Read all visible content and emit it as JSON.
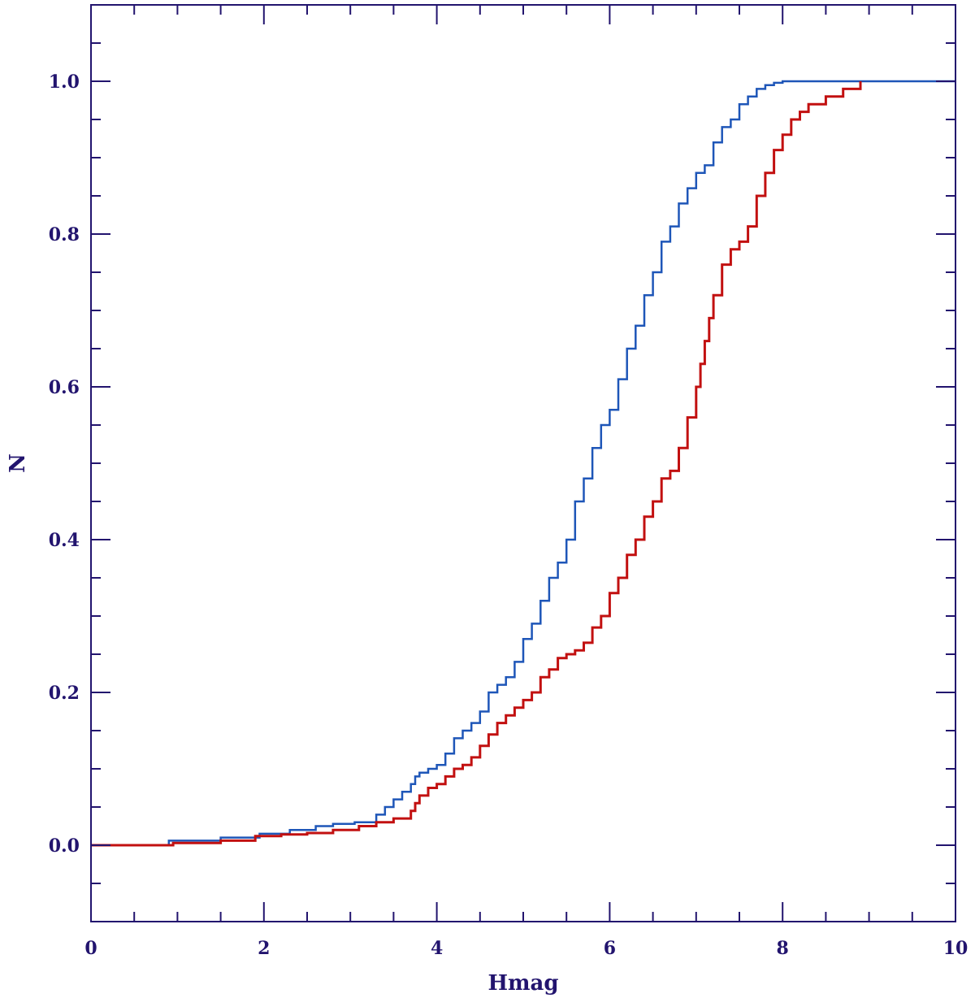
{
  "chart_data": {
    "type": "line",
    "step": true,
    "xlabel": "Hmag",
    "ylabel": "N",
    "xlim": [
      0,
      10
    ],
    "ylim": [
      -0.1,
      1.1
    ],
    "xticks": [
      0,
      2,
      4,
      6,
      8,
      10
    ],
    "yticks": [
      0.0,
      0.2,
      0.4,
      0.6,
      0.8,
      1.0
    ],
    "xtick_labels": [
      "0",
      "2",
      "4",
      "6",
      "8",
      "10"
    ],
    "ytick_labels": [
      "0.0",
      "0.2",
      "0.4",
      "0.6",
      "0.8",
      "1.0"
    ],
    "grid": false,
    "axis_color": "#22146e",
    "series": [
      {
        "color": "#1e56b8",
        "x": [
          0,
          0.9,
          1.5,
          1.95,
          2.3,
          2.6,
          2.8,
          3.05,
          3.3,
          3.4,
          3.5,
          3.6,
          3.7,
          3.75,
          3.8,
          3.9,
          4.0,
          4.1,
          4.2,
          4.3,
          4.4,
          4.5,
          4.6,
          4.7,
          4.8,
          4.9,
          5.0,
          5.1,
          5.2,
          5.3,
          5.4,
          5.5,
          5.6,
          5.7,
          5.8,
          5.9,
          6.0,
          6.1,
          6.2,
          6.3,
          6.4,
          6.5,
          6.6,
          6.7,
          6.8,
          6.9,
          7.0,
          7.1,
          7.2,
          7.3,
          7.4,
          7.5,
          7.6,
          7.7,
          7.8,
          7.9,
          8.0,
          8.1,
          10
        ],
        "y": [
          0.0,
          0.006,
          0.01,
          0.015,
          0.02,
          0.025,
          0.028,
          0.03,
          0.04,
          0.05,
          0.06,
          0.07,
          0.08,
          0.09,
          0.095,
          0.1,
          0.105,
          0.12,
          0.14,
          0.15,
          0.16,
          0.175,
          0.2,
          0.21,
          0.22,
          0.24,
          0.27,
          0.29,
          0.32,
          0.35,
          0.37,
          0.4,
          0.45,
          0.48,
          0.52,
          0.55,
          0.57,
          0.61,
          0.65,
          0.68,
          0.72,
          0.75,
          0.79,
          0.81,
          0.84,
          0.86,
          0.88,
          0.89,
          0.92,
          0.94,
          0.95,
          0.97,
          0.98,
          0.99,
          0.995,
          0.998,
          1.0,
          1.0,
          1.0
        ]
      },
      {
        "color": "#c21010",
        "x": [
          0,
          0.95,
          1.5,
          1.9,
          2.2,
          2.5,
          2.8,
          3.1,
          3.3,
          3.5,
          3.7,
          3.75,
          3.8,
          3.9,
          4.0,
          4.1,
          4.2,
          4.3,
          4.4,
          4.5,
          4.6,
          4.7,
          4.8,
          4.9,
          5.0,
          5.1,
          5.2,
          5.3,
          5.4,
          5.5,
          5.6,
          5.7,
          5.8,
          5.9,
          6.0,
          6.1,
          6.2,
          6.3,
          6.4,
          6.5,
          6.6,
          6.7,
          6.8,
          6.9,
          7.0,
          7.05,
          7.1,
          7.15,
          7.2,
          7.3,
          7.4,
          7.5,
          7.6,
          7.7,
          7.8,
          7.9,
          8.0,
          8.1,
          8.2,
          8.3,
          8.5,
          8.7,
          8.9
        ],
        "y": [
          0.0,
          0.003,
          0.006,
          0.012,
          0.014,
          0.016,
          0.02,
          0.025,
          0.03,
          0.035,
          0.045,
          0.055,
          0.065,
          0.075,
          0.08,
          0.09,
          0.1,
          0.105,
          0.115,
          0.13,
          0.145,
          0.16,
          0.17,
          0.18,
          0.19,
          0.2,
          0.22,
          0.23,
          0.245,
          0.25,
          0.255,
          0.265,
          0.285,
          0.3,
          0.33,
          0.35,
          0.38,
          0.4,
          0.43,
          0.45,
          0.48,
          0.49,
          0.52,
          0.56,
          0.6,
          0.63,
          0.66,
          0.69,
          0.72,
          0.76,
          0.78,
          0.79,
          0.81,
          0.85,
          0.88,
          0.91,
          0.93,
          0.95,
          0.96,
          0.97,
          0.98,
          0.99,
          1.0
        ]
      }
    ]
  }
}
